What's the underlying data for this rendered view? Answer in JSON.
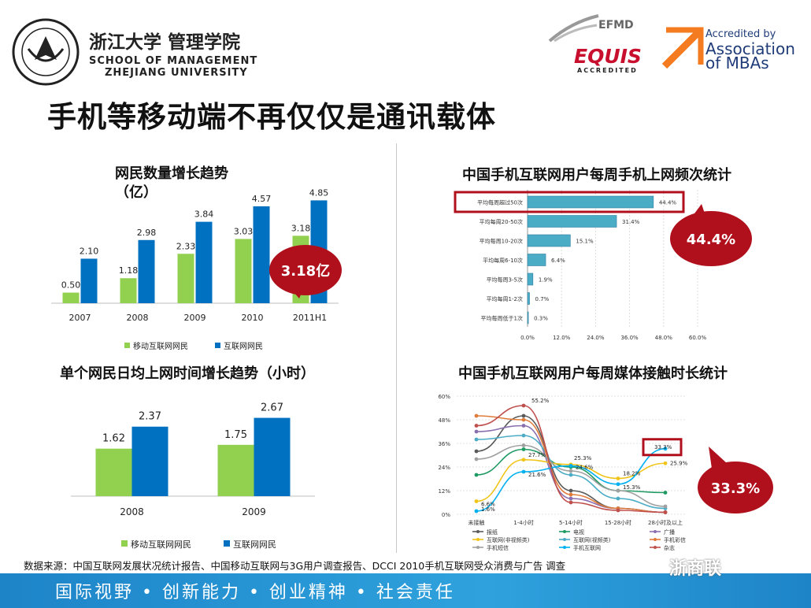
{
  "header": {
    "school_cn": "浙江大学 管理学院",
    "school_en_1": "SCHOOL OF MANAGEMENT",
    "school_en_2": "ZHEJIANG UNIVERSITY",
    "efmd": "EFMD",
    "equis": "EQUIS",
    "equis_sub": "ACCREDITED",
    "amba_1": "Accredited by",
    "amba_2": "Association",
    "amba_3": "of MBAs"
  },
  "main_title": "手机等移动端不再仅仅是通讯载体",
  "footer": {
    "source": "数据来源：中国互联网发展状况统计报告、中国移动互联网与3G用户调查报告、DCCI 2010手机互联网受众消费与广告 调查",
    "slogan": "国际视野 • 创新能力 • 创业精神 • 社会责任",
    "watermark": "浙商联"
  },
  "colors": {
    "green": "#92d050",
    "blue": "#0070c0",
    "cyan": "#4bacc6",
    "highlight_red": "#b0101c",
    "footer_blue": "#2a9ad8"
  },
  "chart_data": [
    {
      "type": "bar",
      "title": "网民数量增长趋势",
      "subtitle": "（亿）",
      "categories": [
        "2007",
        "2008",
        "2009",
        "2010",
        "2011H1"
      ],
      "series": [
        {
          "name": "移动互联网网民",
          "values": [
            0.5,
            1.18,
            2.33,
            3.03,
            3.18
          ]
        },
        {
          "name": "互联网网民",
          "values": [
            2.1,
            2.98,
            3.84,
            4.57,
            4.85
          ]
        }
      ],
      "labels": [
        "0.50",
        "1.18",
        "2.33",
        "3.03",
        "3.18",
        "2.10",
        "2.98",
        "3.84",
        "4.57",
        "4.85"
      ],
      "ylim": [
        0,
        5.2
      ],
      "legend": "bottom",
      "callout": "3.18亿"
    },
    {
      "type": "bar",
      "title": "单个网民日均上网时间增长趋势（小时）",
      "categories": [
        "2008",
        "2009"
      ],
      "series": [
        {
          "name": "移动互联网网民",
          "values": [
            1.62,
            1.75
          ]
        },
        {
          "name": "互联网网民",
          "values": [
            2.37,
            2.67
          ]
        }
      ],
      "labels": [
        "1.62",
        "1.75",
        "2.37",
        "2.67"
      ],
      "ylim": [
        0,
        2.9
      ],
      "legend": "bottom"
    },
    {
      "type": "bar",
      "orientation": "horizontal",
      "title": "中国手机互联网用户每周手机上网频次统计",
      "categories": [
        "平均每周超过50次",
        "平均每周20-50次",
        "平均每周10-20次",
        "平均每周6-10次",
        "平均每周3-5次",
        "平均每周1-2次",
        "平均每周低于1次"
      ],
      "values": [
        44.4,
        31.4,
        15.1,
        6.4,
        1.9,
        0.7,
        0.3
      ],
      "labels": [
        "44.4%",
        "31.4%",
        "15.1%",
        "6.4%",
        "1.9%",
        "0.7%",
        "0.3%"
      ],
      "xticks": [
        "0.0%",
        "12.0%",
        "24.0%",
        "36.0%",
        "48.0%",
        "60.0%"
      ],
      "xlim": [
        0,
        60
      ],
      "callout": "44.4%"
    },
    {
      "type": "line",
      "title": "中国手机互联网用户每周媒体接触时长统计",
      "categories": [
        "未接触",
        "1-4小时",
        "5-14小时",
        "15-28小时",
        "28小时及以上"
      ],
      "yticks": [
        "0%",
        "12%",
        "24%",
        "36%",
        "48%",
        "60%"
      ],
      "ylim": [
        0,
        60
      ],
      "series": [
        {
          "name": "报纸",
          "color": "#5a5a5a",
          "values": [
            32,
            50,
            12,
            3,
            1
          ]
        },
        {
          "name": "电视",
          "color": "#1e9a62",
          "values": [
            20,
            33,
            24,
            12,
            11
          ]
        },
        {
          "name": "广播",
          "color": "#8a6fb0",
          "values": [
            42,
            45,
            8,
            3,
            1
          ]
        },
        {
          "name": "互联网(非视频类)",
          "color": "#f0c419",
          "values": [
            6.6,
            27.7,
            25.3,
            18.2,
            25.9
          ]
        },
        {
          "name": "互联网(视频类)",
          "color": "#4bacc6",
          "values": [
            38,
            40,
            20,
            8,
            3
          ]
        },
        {
          "name": "手机彩信",
          "color": "#e07b39",
          "values": [
            50,
            48,
            10,
            3,
            1
          ]
        },
        {
          "name": "手机短信",
          "color": "#a0a0a0",
          "values": [
            28,
            35,
            22,
            12,
            4
          ]
        },
        {
          "name": "手机互联网",
          "color": "#00b0f0",
          "values": [
            1.6,
            21.6,
            24.6,
            15.3,
            33.3
          ]
        },
        {
          "name": "杂志",
          "color": "#c0504d",
          "values": [
            45,
            55.2,
            6,
            2,
            1
          ]
        }
      ],
      "point_labels": [
        "55.2%",
        "27.7%",
        "25.3%",
        "24.6%",
        "21.6%",
        "18.2%",
        "15.3%",
        "33.3%",
        "25.9%",
        "6.6%",
        "1.6%"
      ],
      "callout": "33.3%"
    }
  ]
}
